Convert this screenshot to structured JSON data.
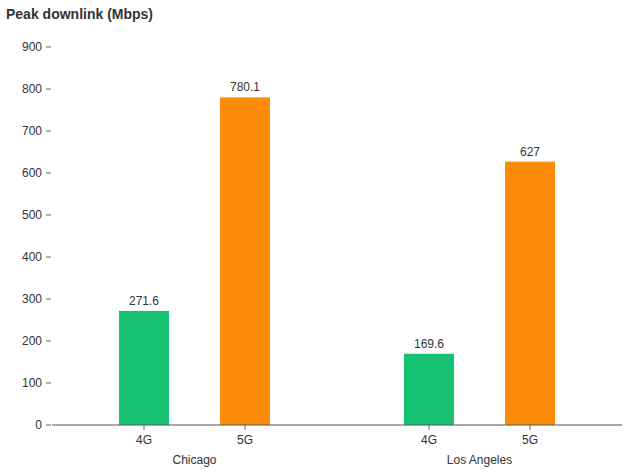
{
  "chart_data": {
    "type": "bar",
    "title": "Peak downlink (Mbps)",
    "categories": [
      "Chicago",
      "Los Angeles"
    ],
    "series": [
      {
        "name": "4G",
        "color": "#16c172",
        "values": [
          271.6,
          169.6
        ]
      },
      {
        "name": "5G",
        "color": "#fd8c08",
        "values": [
          780.1,
          627
        ]
      }
    ],
    "ylim": [
      0,
      900
    ],
    "yticks": [
      0,
      100,
      200,
      300,
      400,
      500,
      600,
      700,
      800,
      900
    ],
    "grid": false,
    "data_labels": true
  }
}
